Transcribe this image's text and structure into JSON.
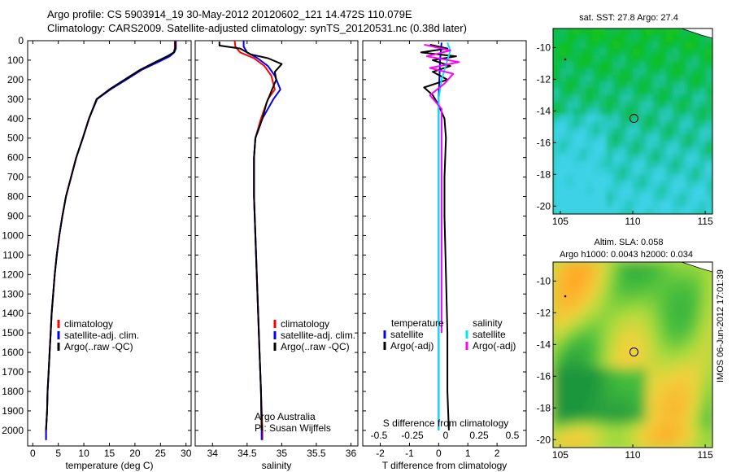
{
  "header": {
    "line1": "Argo profile: CS 5903914_19 30-May-2012 20120602_121 14.472S 110.079E",
    "line2": "Climatology: CARS2009. Satellite-adjusted climatology: synTS_20120531.nc (0.38d later)"
  },
  "side_stamp": "IMOS 06-Jun-2012 17:01:39",
  "colors": {
    "climatology": "#ff0000",
    "satellite": "#0000ff",
    "argo": "#000000",
    "salinity_satellite": "#00e5ee",
    "salinity_argo": "#ff00ff",
    "land": "#ffffff",
    "sst_mid": "#00c000",
    "sla_high": "#ffb000"
  },
  "chart_data": [
    {
      "id": "temperature",
      "type": "line",
      "xlabel": "temperature (deg C)",
      "ylabel": "",
      "xlim": [
        -1,
        31
      ],
      "ylim": [
        2080,
        0
      ],
      "xticks": [
        0,
        5,
        10,
        15,
        20,
        25,
        30
      ],
      "yticks": [
        0,
        100,
        200,
        300,
        400,
        500,
        600,
        700,
        800,
        900,
        1000,
        1100,
        1200,
        1300,
        1400,
        1500,
        1600,
        1700,
        1800,
        1900,
        2000
      ],
      "series": [
        {
          "name": "climatology",
          "color": "#ff0000",
          "points": [
            [
              27.8,
              0
            ],
            [
              27.8,
              40
            ],
            [
              27.6,
              60
            ],
            [
              26.5,
              80
            ],
            [
              24,
              110
            ],
            [
              21,
              150
            ],
            [
              18,
              200
            ],
            [
              15,
              250
            ],
            [
              12.5,
              300
            ],
            [
              11,
              400
            ],
            [
              9.8,
              500
            ],
            [
              8.5,
              600
            ],
            [
              7.5,
              700
            ],
            [
              6.5,
              800
            ],
            [
              5.8,
              900
            ],
            [
              5.2,
              1000
            ],
            [
              4.7,
              1100
            ],
            [
              4.3,
              1200
            ],
            [
              4,
              1300
            ],
            [
              3.7,
              1400
            ],
            [
              3.5,
              1500
            ],
            [
              3.3,
              1600
            ],
            [
              3.1,
              1700
            ],
            [
              2.9,
              1800
            ],
            [
              2.8,
              1900
            ],
            [
              2.6,
              2000
            ],
            [
              2.6,
              2050
            ]
          ]
        },
        {
          "name": "satellite-adj. clim.",
          "color": "#0000ff",
          "points": [
            [
              28,
              0
            ],
            [
              28,
              40
            ],
            [
              27.7,
              60
            ],
            [
              26.8,
              80
            ],
            [
              24.5,
              110
            ],
            [
              21.3,
              150
            ],
            [
              18.3,
              200
            ],
            [
              15.2,
              250
            ],
            [
              12.6,
              300
            ],
            [
              11,
              400
            ],
            [
              9.8,
              500
            ],
            [
              8.5,
              600
            ],
            [
              7.5,
              700
            ],
            [
              6.5,
              800
            ],
            [
              5.8,
              900
            ],
            [
              5.2,
              1000
            ],
            [
              4.7,
              1100
            ],
            [
              4.3,
              1200
            ],
            [
              4,
              1300
            ],
            [
              3.7,
              1400
            ],
            [
              3.5,
              1500
            ],
            [
              3.3,
              1600
            ],
            [
              3.1,
              1700
            ],
            [
              2.9,
              1800
            ],
            [
              2.8,
              1900
            ],
            [
              2.6,
              2000
            ],
            [
              2.6,
              2050
            ]
          ]
        },
        {
          "name": "Argo(..raw -QC)",
          "color": "#000000",
          "points": [
            [
              27.9,
              5
            ],
            [
              27.9,
              40
            ],
            [
              27.6,
              60
            ],
            [
              26.3,
              80
            ],
            [
              24,
              110
            ],
            [
              21,
              150
            ],
            [
              18,
              200
            ],
            [
              15,
              250
            ],
            [
              12.5,
              300
            ],
            [
              11,
              400
            ],
            [
              9.8,
              500
            ],
            [
              8.5,
              600
            ],
            [
              7.5,
              700
            ],
            [
              6.5,
              800
            ],
            [
              5.8,
              900
            ],
            [
              5.2,
              1000
            ],
            [
              4.7,
              1100
            ],
            [
              4.3,
              1200
            ],
            [
              4,
              1300
            ],
            [
              3.7,
              1400
            ],
            [
              3.5,
              1500
            ],
            [
              3.3,
              1600
            ],
            [
              3.1,
              1700
            ],
            [
              2.9,
              1800
            ],
            [
              2.8,
              1900
            ],
            [
              2.6,
              2000
            ]
          ]
        }
      ],
      "legend": [
        "climatology",
        "satellite-adj. clim.",
        "Argo(..raw -QC)"
      ]
    },
    {
      "id": "salinity",
      "type": "line",
      "xlabel": "salinity",
      "xlim": [
        33.75,
        36.1
      ],
      "ylim": [
        2080,
        0
      ],
      "xticks": [
        34,
        34.5,
        35,
        35.5,
        36
      ],
      "xticklabels": [
        "34",
        "34.5",
        "35",
        "35.5",
        "36"
      ],
      "series": [
        {
          "name": "climatology",
          "color": "#ff0000",
          "points": [
            [
              34.32,
              0
            ],
            [
              34.33,
              30
            ],
            [
              34.4,
              60
            ],
            [
              34.6,
              90
            ],
            [
              34.75,
              130
            ],
            [
              34.85,
              180
            ],
            [
              34.9,
              250
            ],
            [
              34.8,
              300
            ],
            [
              34.7,
              400
            ],
            [
              34.62,
              500
            ],
            [
              34.6,
              600
            ],
            [
              34.6,
              800
            ],
            [
              34.62,
              1000
            ],
            [
              34.64,
              1200
            ],
            [
              34.66,
              1400
            ],
            [
              34.68,
              1600
            ],
            [
              34.7,
              1800
            ],
            [
              34.72,
              2000
            ],
            [
              34.72,
              2050
            ]
          ]
        },
        {
          "name": "satellite-adj. clim.",
          "color": "#0000ff",
          "points": [
            [
              34.45,
              0
            ],
            [
              34.45,
              30
            ],
            [
              34.5,
              60
            ],
            [
              34.65,
              90
            ],
            [
              34.8,
              130
            ],
            [
              34.9,
              180
            ],
            [
              34.98,
              250
            ],
            [
              34.88,
              300
            ],
            [
              34.72,
              400
            ],
            [
              34.62,
              500
            ],
            [
              34.6,
              600
            ],
            [
              34.6,
              800
            ],
            [
              34.62,
              1000
            ],
            [
              34.64,
              1200
            ],
            [
              34.66,
              1400
            ],
            [
              34.68,
              1600
            ],
            [
              34.7,
              1800
            ],
            [
              34.71,
              2000
            ],
            [
              34.71,
              2050
            ]
          ]
        },
        {
          "name": "Argo(..raw -QC)",
          "color": "#000000",
          "points": [
            [
              34.1,
              5
            ],
            [
              34.1,
              25
            ],
            [
              34.4,
              40
            ],
            [
              34.55,
              70
            ],
            [
              34.8,
              90
            ],
            [
              35.0,
              120
            ],
            [
              34.9,
              160
            ],
            [
              34.92,
              200
            ],
            [
              34.85,
              260
            ],
            [
              34.78,
              320
            ],
            [
              34.72,
              400
            ],
            [
              34.62,
              500
            ],
            [
              34.6,
              600
            ],
            [
              34.6,
              800
            ],
            [
              34.62,
              1000
            ],
            [
              34.64,
              1200
            ],
            [
              34.66,
              1400
            ],
            [
              34.68,
              1600
            ],
            [
              34.7,
              1800
            ],
            [
              34.71,
              2000
            ]
          ]
        }
      ],
      "legend": [
        "climatology",
        "satellite-adj. clim.",
        "Argo(..raw -QC)"
      ],
      "annotations": [
        "Argo Australia",
        "PI: Susan Wijffels"
      ]
    },
    {
      "id": "difference",
      "type": "line",
      "xlabel": "T difference from climatology",
      "top_xlabel": "S difference from climatology",
      "xlim": [
        -2.6,
        3
      ],
      "ylim": [
        2080,
        0
      ],
      "xticks": [
        -2,
        -1,
        0,
        1,
        2
      ],
      "top_xticks": [
        -0.5,
        -0.25,
        0,
        0.25,
        0.5
      ],
      "top_xticklabels": [
        "-0.5",
        "-0.25",
        "0",
        "0.25",
        "0.5"
      ],
      "series": [
        {
          "name": "temperature satellite",
          "color": "#0000ff",
          "points": [
            [
              0.1,
              10
            ],
            [
              0.05,
              100
            ],
            [
              0,
              300
            ],
            [
              0,
              600
            ],
            [
              0,
              1000
            ],
            [
              0,
              1500
            ],
            [
              0,
              2000
            ]
          ]
        },
        {
          "name": "temperature Argo(-adj)",
          "color": "#000000",
          "points": [
            [
              -0.3,
              20
            ],
            [
              0.3,
              40
            ],
            [
              -0.6,
              60
            ],
            [
              0.6,
              80
            ],
            [
              -0.2,
              100
            ],
            [
              0.4,
              130
            ],
            [
              -0.2,
              160
            ],
            [
              0.3,
              200
            ],
            [
              -0.5,
              240
            ],
            [
              -0.2,
              280
            ],
            [
              0,
              330
            ],
            [
              0.2,
              400
            ],
            [
              0.25,
              500
            ],
            [
              0.2,
              700
            ],
            [
              0.2,
              900
            ],
            [
              0.25,
              1200
            ],
            [
              0.3,
              1500
            ],
            [
              0.3,
              1800
            ],
            [
              0.35,
              2000
            ]
          ]
        },
        {
          "name": "salinity satellite",
          "color": "#00e5ee",
          "points": [
            [
              0.3,
              10
            ],
            [
              0.4,
              50
            ],
            [
              0.3,
              100
            ],
            [
              0.1,
              200
            ],
            [
              0,
              300
            ],
            [
              0,
              600
            ],
            [
              0,
              1000
            ],
            [
              0,
              1500
            ],
            [
              0,
              2000
            ]
          ]
        },
        {
          "name": "salinity Argo(-adj)",
          "color": "#ff00ff",
          "points": [
            [
              -0.5,
              20
            ],
            [
              0.4,
              50
            ],
            [
              -0.4,
              80
            ],
            [
              0.7,
              110
            ],
            [
              -0.3,
              140
            ],
            [
              0.5,
              170
            ],
            [
              0.2,
              220
            ],
            [
              -0.3,
              280
            ],
            [
              0.1,
              350
            ],
            [
              0.1,
              500
            ],
            [
              0.1,
              800
            ],
            [
              0.1,
              1200
            ],
            [
              0.1,
              1500
            ]
          ]
        }
      ],
      "legend_headers": [
        "temperature",
        "salinity"
      ],
      "legend": [
        "satellite",
        "Argo(-adj)",
        "satellite",
        "Argo(-adj)"
      ]
    },
    {
      "id": "sst-map",
      "type": "heatmap",
      "title": "sat. SST: 27.8 Argo: 27.4",
      "xlim": [
        104.5,
        115.5
      ],
      "ylim": [
        -20.5,
        -8.8
      ],
      "xticks": [
        105,
        110,
        115
      ],
      "yticks": [
        -10,
        -12,
        -14,
        -16,
        -18,
        -20
      ],
      "profile_location": [
        110.079,
        -14.472
      ]
    },
    {
      "id": "sla-map",
      "type": "heatmap",
      "title": "Altim. SLA: 0.058",
      "subtitle": "Argo h1000: 0.0043 h2000: 0.034",
      "xlim": [
        104.5,
        115.5
      ],
      "ylim": [
        -20.5,
        -8.8
      ],
      "xticks": [
        105,
        110,
        115
      ],
      "yticks": [
        -10,
        -12,
        -14,
        -16,
        -18,
        -20
      ],
      "profile_location": [
        110.079,
        -14.472
      ]
    }
  ]
}
